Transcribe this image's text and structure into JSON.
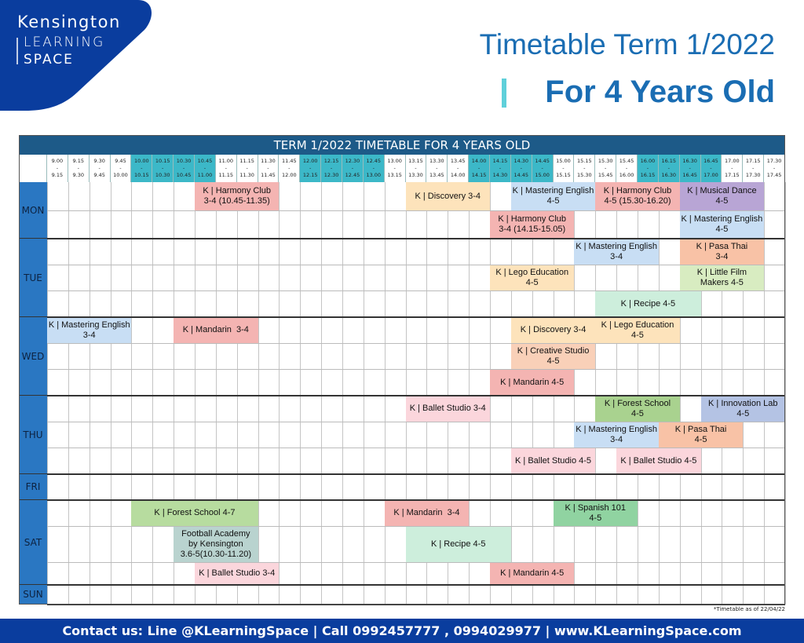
{
  "logo": {
    "lines": [
      "Kensington",
      "LEARNING",
      "SPACE"
    ]
  },
  "header": {
    "title": "Timetable Term 1/2022",
    "subtitle": "For 4 Years Old"
  },
  "table": {
    "title": "TERM 1/2022 TIMETABLE FOR 4 YEARS OLD",
    "separator": "-",
    "slots": [
      {
        "start": "9.00",
        "end": "9.15"
      },
      {
        "start": "9.15",
        "end": "9.30"
      },
      {
        "start": "9.30",
        "end": "9.45"
      },
      {
        "start": "9.45",
        "end": "10.00"
      },
      {
        "start": "10.00",
        "end": "10.15"
      },
      {
        "start": "10.15",
        "end": "10.30"
      },
      {
        "start": "10.30",
        "end": "10.45"
      },
      {
        "start": "10.45",
        "end": "11.00"
      },
      {
        "start": "11.00",
        "end": "11.15"
      },
      {
        "start": "11.15",
        "end": "11.30"
      },
      {
        "start": "11.30",
        "end": "11.45"
      },
      {
        "start": "11.45",
        "end": "12.00"
      },
      {
        "start": "12.00",
        "end": "12.15"
      },
      {
        "start": "12.15",
        "end": "12.30"
      },
      {
        "start": "12.30",
        "end": "12.45"
      },
      {
        "start": "12.45",
        "end": "13.00"
      },
      {
        "start": "13.00",
        "end": "13.15"
      },
      {
        "start": "13.15",
        "end": "13.30"
      },
      {
        "start": "13.30",
        "end": "13.45"
      },
      {
        "start": "13.45",
        "end": "14.00"
      },
      {
        "start": "14.00",
        "end": "14.15"
      },
      {
        "start": "14.15",
        "end": "14.30"
      },
      {
        "start": "14.30",
        "end": "14.45"
      },
      {
        "start": "14.45",
        "end": "15.00"
      },
      {
        "start": "15.00",
        "end": "15.15"
      },
      {
        "start": "15.15",
        "end": "15.30"
      },
      {
        "start": "15.30",
        "end": "15.45"
      },
      {
        "start": "15.45",
        "end": "16.00"
      },
      {
        "start": "16.00",
        "end": "16.15"
      },
      {
        "start": "16.15",
        "end": "16.30"
      },
      {
        "start": "16.30",
        "end": "16.45"
      },
      {
        "start": "16.45",
        "end": "17.00"
      },
      {
        "start": "17.00",
        "end": "17.15"
      },
      {
        "start": "17.15",
        "end": "17.30"
      },
      {
        "start": "17.30",
        "end": "17.45"
      }
    ],
    "days": [
      {
        "name": "MON",
        "rows": [
          {
            "events": [
              {
                "lines": [
                  "K | Harmony Club",
                  "3-4 (10.45-11.35)"
                ],
                "from": "10.45",
                "to": "11.45",
                "color": "#f4b4b2"
              },
              {
                "lines": [
                  "K | Discovery 3-4"
                ],
                "from": "13.15",
                "to": "14.15",
                "color": "#fde3bb"
              },
              {
                "lines": [
                  "K | Mastering English",
                  "4-5"
                ],
                "from": "14.30",
                "to": "15.30",
                "color": "#c8def4"
              },
              {
                "lines": [
                  "K | Harmony Club",
                  "4-5 (15.30-16.20)"
                ],
                "from": "15.30",
                "to": "16.30",
                "color": "#f4b4b2"
              },
              {
                "lines": [
                  "K | Musical Dance",
                  "4-5"
                ],
                "from": "16.30",
                "to": "17.30",
                "color": "#b8a5d5"
              }
            ]
          },
          {
            "events": [
              {
                "lines": [
                  "K | Harmony Club",
                  "3-4 (14.15-15.05)"
                ],
                "from": "14.15",
                "to": "15.15",
                "color": "#f4b4b2"
              },
              {
                "lines": [
                  "K | Mastering English",
                  "4-5"
                ],
                "from": "16.30",
                "to": "17.30",
                "color": "#c8def4"
              }
            ]
          }
        ]
      },
      {
        "name": "TUE",
        "rows": [
          {
            "events": [
              {
                "lines": [
                  "K | Mastering English",
                  "3-4"
                ],
                "from": "15.15",
                "to": "16.15",
                "color": "#c8def4"
              },
              {
                "lines": [
                  "K | Pasa Thai",
                  "3-4"
                ],
                "from": "16.30",
                "to": "17.30",
                "color": "#f8c2a6"
              }
            ]
          },
          {
            "events": [
              {
                "lines": [
                  "K | Lego Education",
                  "4-5"
                ],
                "from": "14.15",
                "to": "15.15",
                "color": "#fde3bb"
              },
              {
                "lines": [
                  "K | Little Film",
                  "Makers 4-5"
                ],
                "from": "16.30",
                "to": "17.30",
                "color": "#d8ecc1"
              }
            ]
          },
          {
            "events": [
              {
                "lines": [
                  "K | Recipe 4-5"
                ],
                "from": "15.30",
                "to": "16.45",
                "color": "#cdeedc"
              }
            ]
          }
        ]
      },
      {
        "name": "WED",
        "rows": [
          {
            "events": [
              {
                "lines": [
                  "K | Mastering English",
                  "3-4"
                ],
                "from": "9.00",
                "to": "10.00",
                "color": "#c8def4"
              },
              {
                "lines": [
                  "K | Mandarin  3-4"
                ],
                "from": "10.30",
                "to": "11.30",
                "color": "#f4b4b2"
              },
              {
                "lines": [
                  "K | Discovery 3-4"
                ],
                "from": "14.30",
                "to": "15.30",
                "color": "#fde3bb"
              },
              {
                "lines": [
                  "K | Lego Education",
                  "4-5"
                ],
                "from": "15.30",
                "to": "16.30",
                "color": "#fde3bb"
              }
            ]
          },
          {
            "events": [
              {
                "lines": [
                  "K | Creative Studio",
                  "4-5"
                ],
                "from": "14.30",
                "to": "15.30",
                "color": "#f9d0b8"
              }
            ]
          },
          {
            "events": [
              {
                "lines": [
                  "K | Mandarin 4-5"
                ],
                "from": "14.15",
                "to": "15.15",
                "color": "#f4b4b2"
              }
            ]
          }
        ]
      },
      {
        "name": "THU",
        "rows": [
          {
            "events": [
              {
                "lines": [
                  "K | Ballet Studio 3-4"
                ],
                "from": "13.15",
                "to": "14.15",
                "color": "#fbd6dc"
              },
              {
                "lines": [
                  "K | Forest School",
                  "4-5"
                ],
                "from": "15.30",
                "to": "16.30",
                "color": "#a9d28f"
              },
              {
                "lines": [
                  "K | Innovation Lab",
                  "4-5"
                ],
                "from": "16.45",
                "to": "17.45",
                "color": "#b4c3e4"
              }
            ]
          },
          {
            "events": [
              {
                "lines": [
                  "K | Mastering English",
                  "3-4"
                ],
                "from": "15.15",
                "to": "16.15",
                "color": "#c8def4"
              },
              {
                "lines": [
                  "K | Pasa Thai",
                  "4-5"
                ],
                "from": "16.15",
                "to": "17.15",
                "color": "#f8c2a6"
              }
            ]
          },
          {
            "events": [
              {
                "lines": [
                  "K | Ballet Studio 4-5"
                ],
                "from": "14.30",
                "to": "15.30",
                "color": "#fbd6dc"
              },
              {
                "lines": [
                  "K | Ballet Studio 4-5"
                ],
                "from": "15.45",
                "to": "16.45",
                "color": "#fbd6dc"
              }
            ]
          }
        ]
      },
      {
        "name": "FRI",
        "rows": [
          {
            "events": []
          }
        ]
      },
      {
        "name": "SAT",
        "rows": [
          {
            "events": [
              {
                "lines": [
                  "K | Forest School 4-7"
                ],
                "from": "10.00",
                "to": "11.30",
                "color": "#b7dc9f"
              },
              {
                "lines": [
                  "K | Mandarin  3-4"
                ],
                "from": "13.00",
                "to": "14.00",
                "color": "#f4b4b2"
              },
              {
                "lines": [
                  "K | Spanish 101",
                  "4-5"
                ],
                "from": "15.00",
                "to": "16.00",
                "color": "#90d3a1"
              }
            ]
          },
          {
            "events": [
              {
                "lines": [
                  "Football Academy",
                  "by Kensington",
                  "3.6-5(10.30-11.20)"
                ],
                "from": "10.30",
                "to": "11.30",
                "color": "#b9d3cf"
              },
              {
                "lines": [
                  "K | Recipe 4-5"
                ],
                "from": "13.15",
                "to": "14.30",
                "color": "#cdeedc"
              }
            ]
          },
          {
            "events": [
              {
                "lines": [
                  "K | Ballet Studio 3-4"
                ],
                "from": "10.45",
                "to": "11.45",
                "color": "#fbd6dc"
              },
              {
                "lines": [
                  "K | Mandarin 4-5"
                ],
                "from": "14.15",
                "to": "15.15",
                "color": "#f4b4b2"
              }
            ]
          }
        ]
      },
      {
        "name": "SUN",
        "rows": [
          {
            "events": []
          }
        ]
      }
    ]
  },
  "note": "*Timetable as of 22/04/22",
  "footer": "Contact us: Line @KLearningSpace | Call 0992457777 , 0994029977 | www.KLearningSpace.com"
}
